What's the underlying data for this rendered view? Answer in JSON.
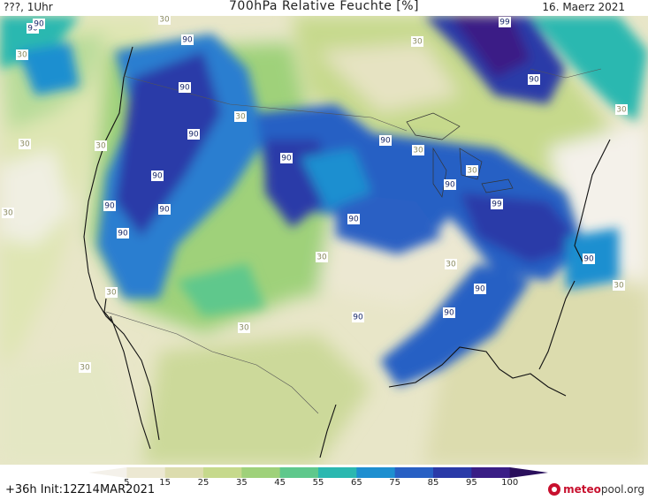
{
  "header": {
    "left": "???, 1Uhr",
    "title": "700hPa Relative Feuchte [%]",
    "date": "16. Maerz 2021"
  },
  "footer": {
    "init": "+36h Init:12Z14MAR2021",
    "brand_part1": "meteo",
    "brand_part2": "pool.org"
  },
  "colorbar": {
    "tick_labels": [
      "5",
      "15",
      "25",
      "35",
      "45",
      "55",
      "65",
      "75",
      "85",
      "95",
      "100"
    ],
    "colors": [
      "#f4f1ea",
      "#ece8d2",
      "#dcdcae",
      "#c6d98c",
      "#9fd17a",
      "#5fc88c",
      "#2bb8b0",
      "#1e8fd0",
      "#2860c4",
      "#2a3aa8",
      "#3a1e86",
      "#2a0f5c"
    ]
  },
  "map": {
    "contour_labels": [
      {
        "text": "90"
      },
      {
        "text": "90"
      },
      {
        "text": "90"
      },
      {
        "text": "90"
      },
      {
        "text": "90"
      },
      {
        "text": "90"
      },
      {
        "text": "90"
      },
      {
        "text": "90"
      },
      {
        "text": "90"
      },
      {
        "text": "90"
      },
      {
        "text": "90"
      },
      {
        "text": "90"
      },
      {
        "text": "90"
      },
      {
        "text": "90"
      },
      {
        "text": "90"
      },
      {
        "text": "90"
      },
      {
        "text": "90"
      },
      {
        "text": "90"
      },
      {
        "text": "99"
      },
      {
        "text": "99"
      },
      {
        "text": "30"
      },
      {
        "text": "30"
      },
      {
        "text": "30"
      },
      {
        "text": "30"
      },
      {
        "text": "30"
      },
      {
        "text": "30"
      },
      {
        "text": "30"
      },
      {
        "text": "30"
      },
      {
        "text": "30"
      },
      {
        "text": "30"
      },
      {
        "text": "30"
      },
      {
        "text": "30"
      },
      {
        "text": "30"
      },
      {
        "text": "30"
      },
      {
        "text": "30"
      },
      {
        "text": "30"
      }
    ]
  }
}
